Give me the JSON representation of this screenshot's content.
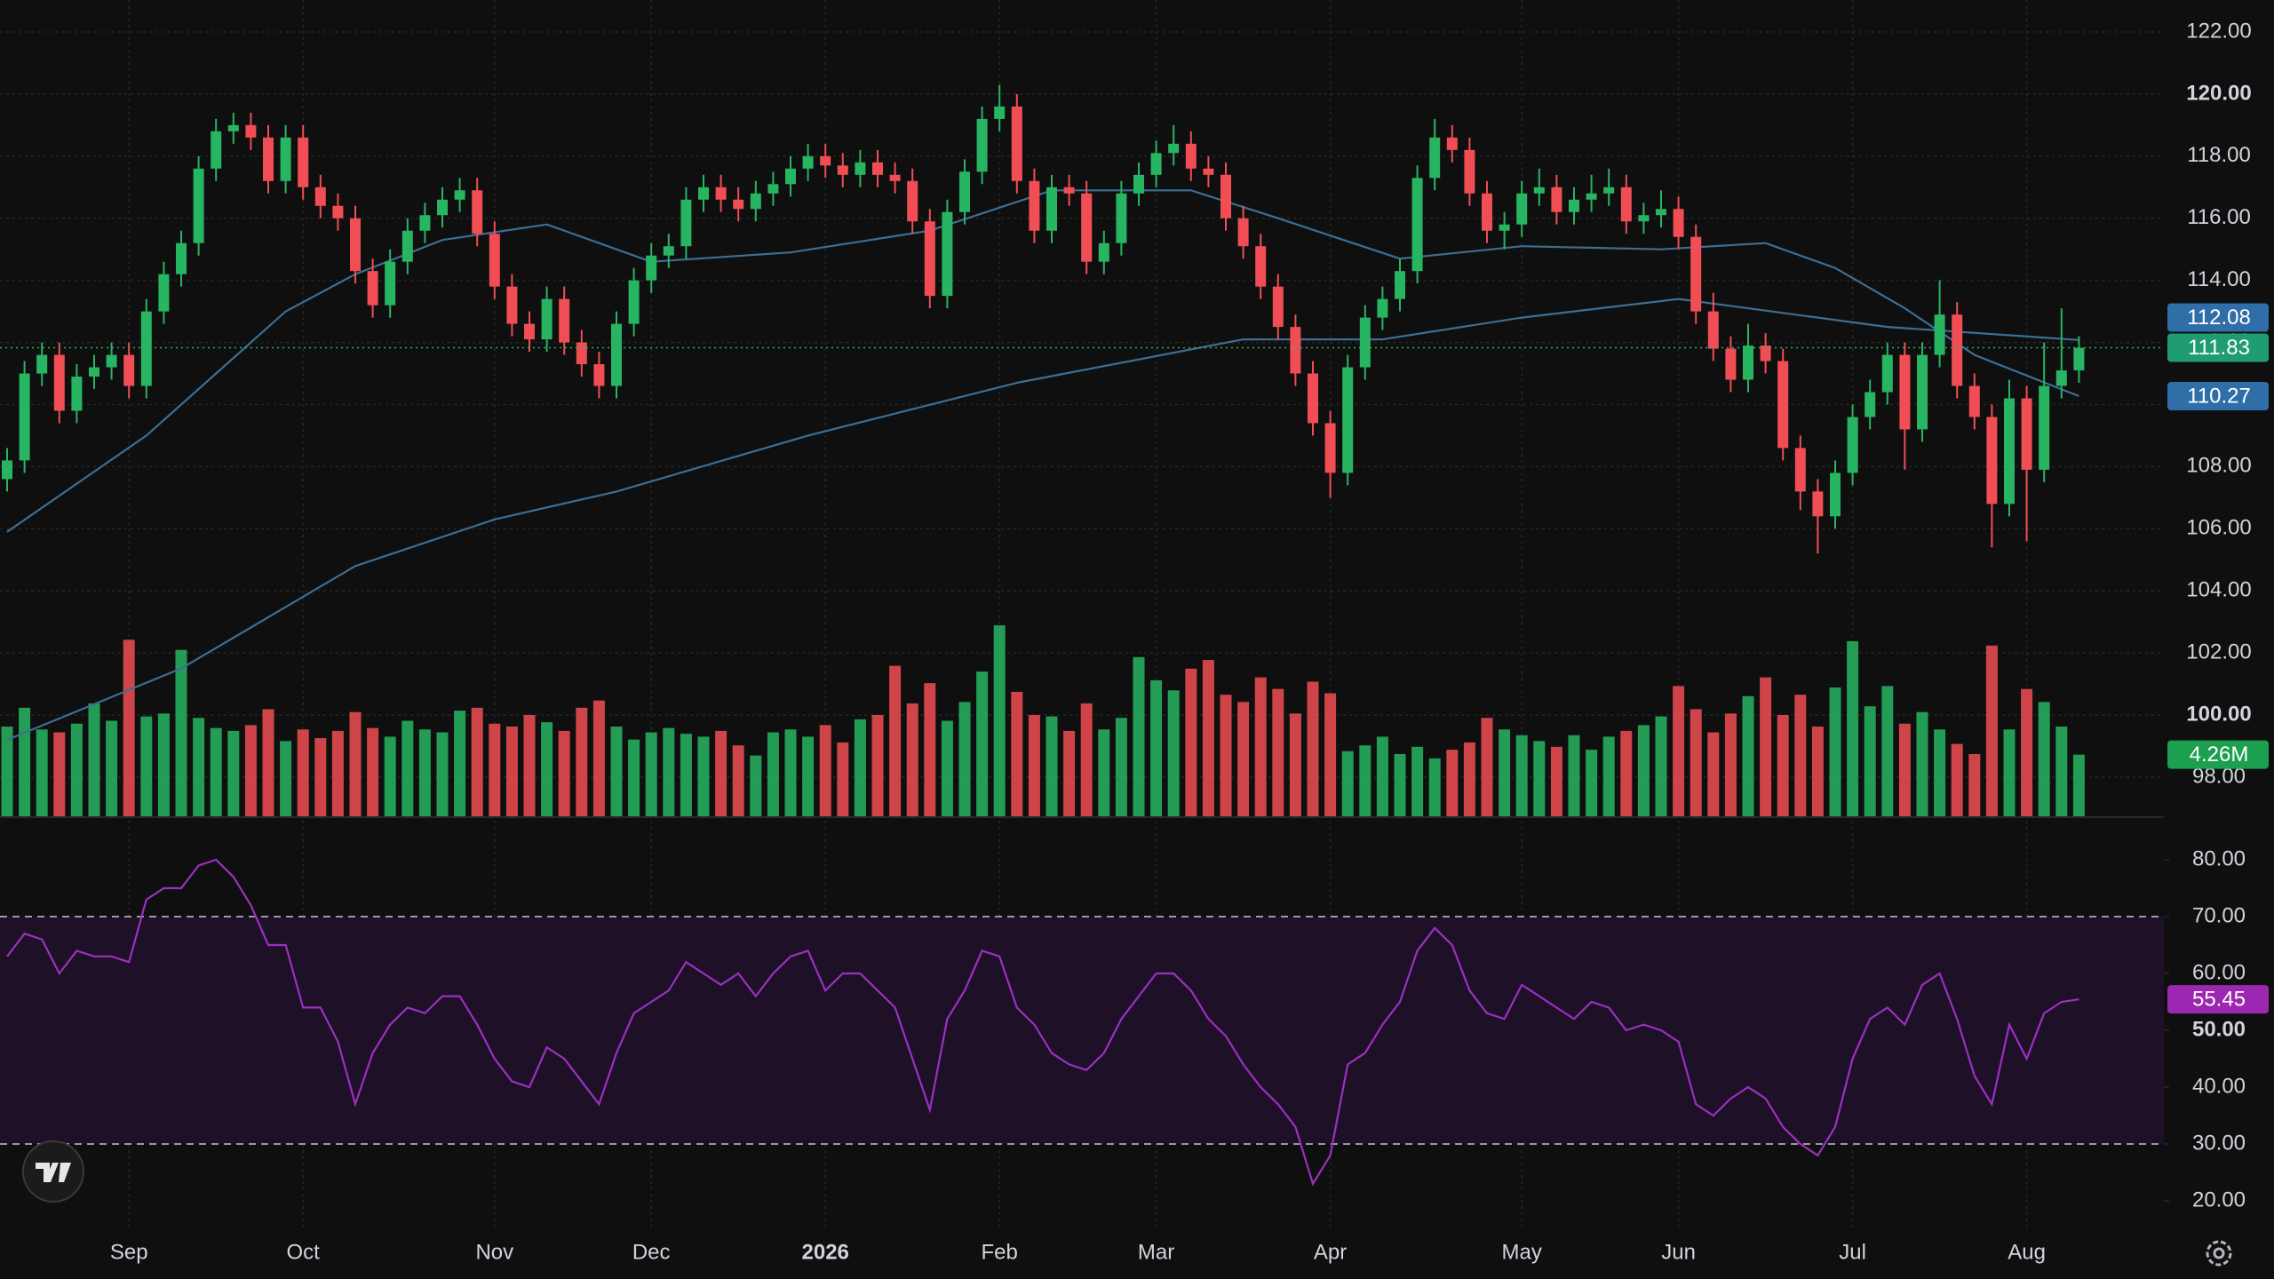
{
  "chart_data": {
    "type": "candlestick",
    "up_color": "#27b562",
    "down_color": "#f04e54",
    "grid": true,
    "ylim": [
      96.74,
      123.03
    ],
    "yticks": [
      {
        "value": 98,
        "label": "98.00"
      },
      {
        "value": 100,
        "label": "100.00",
        "bold": true
      },
      {
        "value": 102,
        "label": "102.00"
      },
      {
        "value": 104,
        "label": "104.00"
      },
      {
        "value": 106,
        "label": "106.00"
      },
      {
        "value": 108,
        "label": "108.00"
      },
      {
        "value": 110,
        "label": "110.00"
      },
      {
        "value": 112,
        "label": "112.00"
      },
      {
        "value": 114,
        "label": "114.00"
      },
      {
        "value": 116,
        "label": "116.00"
      },
      {
        "value": 118,
        "label": "118.00"
      },
      {
        "value": 120,
        "label": "120.00",
        "bold": true
      },
      {
        "value": 122,
        "label": "122.00"
      }
    ],
    "xticks": [
      {
        "value": 7,
        "label": "Sep"
      },
      {
        "value": 17,
        "label": "Oct"
      },
      {
        "value": 28,
        "label": "Nov"
      },
      {
        "value": 37,
        "label": "Dec"
      },
      {
        "value": 47,
        "label": "2026",
        "bold": true
      },
      {
        "value": 57,
        "label": "Feb"
      },
      {
        "value": 66,
        "label": "Mar"
      },
      {
        "value": 76,
        "label": "Apr"
      },
      {
        "value": 87,
        "label": "May"
      },
      {
        "value": 96,
        "label": "Jun"
      },
      {
        "value": 106,
        "label": "Jul"
      },
      {
        "value": 116,
        "label": "Aug"
      }
    ],
    "candles": [
      [
        107.6,
        108.6,
        107.2,
        108.2
      ],
      [
        108.2,
        111.4,
        107.8,
        111.0
      ],
      [
        111.0,
        112.0,
        110.6,
        111.6
      ],
      [
        111.6,
        112.0,
        109.4,
        109.8
      ],
      [
        109.8,
        111.3,
        109.4,
        110.9
      ],
      [
        110.9,
        111.6,
        110.5,
        111.2
      ],
      [
        111.2,
        112.0,
        110.8,
        111.6
      ],
      [
        111.6,
        112.0,
        110.2,
        110.6
      ],
      [
        110.6,
        113.4,
        110.2,
        113.0
      ],
      [
        113.0,
        114.6,
        112.6,
        114.2
      ],
      [
        114.2,
        115.6,
        113.8,
        115.2
      ],
      [
        115.2,
        118.0,
        114.8,
        117.6
      ],
      [
        117.6,
        119.2,
        117.2,
        118.8
      ],
      [
        118.8,
        119.4,
        118.4,
        119.0
      ],
      [
        119.0,
        119.4,
        118.2,
        118.6
      ],
      [
        118.6,
        119.0,
        116.8,
        117.2
      ],
      [
        117.2,
        119.0,
        116.8,
        118.6
      ],
      [
        118.6,
        119.0,
        116.6,
        117.0
      ],
      [
        117.0,
        117.4,
        116.0,
        116.4
      ],
      [
        116.4,
        116.8,
        115.6,
        116.0
      ],
      [
        116.0,
        116.4,
        113.9,
        114.3
      ],
      [
        114.3,
        114.7,
        112.8,
        113.2
      ],
      [
        113.2,
        115.0,
        112.8,
        114.6
      ],
      [
        114.6,
        116.0,
        114.2,
        115.6
      ],
      [
        115.6,
        116.5,
        115.2,
        116.1
      ],
      [
        116.1,
        117.0,
        115.7,
        116.6
      ],
      [
        116.6,
        117.3,
        116.2,
        116.9
      ],
      [
        116.9,
        117.3,
        115.1,
        115.5
      ],
      [
        115.5,
        115.9,
        113.4,
        113.8
      ],
      [
        113.8,
        114.2,
        112.2,
        112.6
      ],
      [
        112.6,
        113.0,
        111.7,
        112.1
      ],
      [
        112.1,
        113.8,
        111.7,
        113.4
      ],
      [
        113.4,
        113.8,
        111.6,
        112.0
      ],
      [
        112.0,
        112.4,
        110.9,
        111.3
      ],
      [
        111.3,
        111.7,
        110.2,
        110.6
      ],
      [
        110.6,
        113.0,
        110.2,
        112.6
      ],
      [
        112.6,
        114.4,
        112.2,
        114.0
      ],
      [
        114.0,
        115.2,
        113.6,
        114.8
      ],
      [
        114.8,
        115.5,
        114.4,
        115.1
      ],
      [
        115.1,
        117.0,
        114.7,
        116.6
      ],
      [
        116.6,
        117.4,
        116.2,
        117.0
      ],
      [
        117.0,
        117.4,
        116.2,
        116.6
      ],
      [
        116.6,
        117.0,
        115.9,
        116.3
      ],
      [
        116.3,
        117.2,
        115.9,
        116.8
      ],
      [
        116.8,
        117.5,
        116.4,
        117.1
      ],
      [
        117.1,
        118.0,
        116.7,
        117.6
      ],
      [
        117.6,
        118.4,
        117.2,
        118.0
      ],
      [
        118.0,
        118.4,
        117.3,
        117.7
      ],
      [
        117.7,
        118.1,
        117.0,
        117.4
      ],
      [
        117.4,
        118.2,
        117.0,
        117.8
      ],
      [
        117.8,
        118.2,
        117.0,
        117.4
      ],
      [
        117.4,
        117.8,
        116.8,
        117.2
      ],
      [
        117.2,
        117.6,
        115.5,
        115.9
      ],
      [
        115.9,
        116.3,
        113.1,
        113.5
      ],
      [
        113.5,
        116.6,
        113.1,
        116.2
      ],
      [
        116.2,
        117.9,
        115.8,
        117.5
      ],
      [
        117.5,
        119.6,
        117.1,
        119.2
      ],
      [
        119.2,
        120.3,
        118.8,
        119.6
      ],
      [
        119.6,
        120.0,
        116.8,
        117.2
      ],
      [
        117.2,
        117.6,
        115.2,
        115.6
      ],
      [
        115.6,
        117.4,
        115.2,
        117.0
      ],
      [
        117.0,
        117.4,
        116.4,
        116.8
      ],
      [
        116.8,
        117.2,
        114.2,
        114.6
      ],
      [
        114.6,
        115.6,
        114.2,
        115.2
      ],
      [
        115.2,
        117.2,
        114.8,
        116.8
      ],
      [
        116.8,
        117.8,
        116.4,
        117.4
      ],
      [
        117.4,
        118.5,
        117.0,
        118.1
      ],
      [
        118.1,
        119.0,
        117.7,
        118.4
      ],
      [
        118.4,
        118.8,
        117.2,
        117.6
      ],
      [
        117.6,
        118.0,
        117.0,
        117.4
      ],
      [
        117.4,
        117.8,
        115.6,
        116.0
      ],
      [
        116.0,
        116.4,
        114.7,
        115.1
      ],
      [
        115.1,
        115.5,
        113.4,
        113.8
      ],
      [
        113.8,
        114.2,
        112.1,
        112.5
      ],
      [
        112.5,
        112.9,
        110.6,
        111.0
      ],
      [
        111.0,
        111.4,
        109.0,
        109.4
      ],
      [
        109.4,
        109.8,
        107.0,
        107.8
      ],
      [
        107.8,
        111.6,
        107.4,
        111.2
      ],
      [
        111.2,
        113.2,
        110.8,
        112.8
      ],
      [
        112.8,
        113.8,
        112.4,
        113.4
      ],
      [
        113.4,
        114.7,
        113.0,
        114.3
      ],
      [
        114.3,
        117.7,
        113.9,
        117.3
      ],
      [
        117.3,
        119.2,
        116.9,
        118.6
      ],
      [
        118.6,
        119.0,
        117.8,
        118.2
      ],
      [
        118.2,
        118.6,
        116.4,
        116.8
      ],
      [
        116.8,
        117.2,
        115.2,
        115.6
      ],
      [
        115.6,
        116.2,
        115.0,
        115.8
      ],
      [
        115.8,
        117.2,
        115.4,
        116.8
      ],
      [
        116.8,
        117.6,
        116.4,
        117.0
      ],
      [
        117.0,
        117.4,
        115.8,
        116.2
      ],
      [
        116.2,
        117.0,
        115.8,
        116.6
      ],
      [
        116.6,
        117.4,
        116.2,
        116.8
      ],
      [
        116.8,
        117.6,
        116.4,
        117.0
      ],
      [
        117.0,
        117.4,
        115.5,
        115.9
      ],
      [
        115.9,
        116.5,
        115.5,
        116.1
      ],
      [
        116.1,
        116.9,
        115.7,
        116.3
      ],
      [
        116.3,
        116.7,
        115.0,
        115.4
      ],
      [
        115.4,
        115.8,
        112.6,
        113.0
      ],
      [
        113.0,
        113.6,
        111.4,
        111.8
      ],
      [
        111.8,
        112.2,
        110.4,
        110.8
      ],
      [
        110.8,
        112.6,
        110.4,
        111.9
      ],
      [
        111.9,
        112.3,
        111.0,
        111.4
      ],
      [
        111.4,
        111.8,
        108.2,
        108.6
      ],
      [
        108.6,
        109.0,
        106.6,
        107.2
      ],
      [
        107.2,
        107.6,
        105.2,
        106.4
      ],
      [
        106.4,
        108.2,
        106.0,
        107.8
      ],
      [
        107.8,
        110.0,
        107.4,
        109.6
      ],
      [
        109.6,
        110.8,
        109.2,
        110.4
      ],
      [
        110.4,
        112.0,
        110.0,
        111.6
      ],
      [
        111.6,
        112.0,
        107.9,
        109.2
      ],
      [
        109.2,
        112.0,
        108.8,
        111.6
      ],
      [
        111.6,
        114.0,
        111.2,
        112.9
      ],
      [
        112.9,
        113.3,
        110.2,
        110.6
      ],
      [
        110.6,
        111.0,
        109.2,
        109.6
      ],
      [
        109.6,
        110.0,
        105.4,
        106.8
      ],
      [
        106.8,
        110.8,
        106.4,
        110.2
      ],
      [
        110.2,
        110.6,
        105.6,
        107.9
      ],
      [
        107.9,
        112.0,
        107.5,
        110.6
      ],
      [
        110.6,
        113.1,
        110.2,
        111.1
      ],
      [
        111.1,
        112.2,
        110.7,
        111.83
      ]
    ],
    "ma": [
      {
        "color": "#3d6e94",
        "x": [
          0,
          10,
          20,
          28,
          35,
          46,
          58,
          71,
          79,
          87,
          96,
          108,
          119
        ],
        "values": [
          99.2,
          101.5,
          104.8,
          106.3,
          107.2,
          109.0,
          110.7,
          112.1,
          112.1,
          112.8,
          113.4,
          112.5,
          112.08
        ]
      },
      {
        "color": "#3d6e94",
        "x": [
          0,
          8,
          16,
          20,
          25,
          31,
          37,
          45,
          53,
          60,
          68,
          73,
          80,
          87,
          95,
          101,
          105,
          109,
          113,
          119
        ],
        "values": [
          105.9,
          109.0,
          113.0,
          114.2,
          115.3,
          115.8,
          114.6,
          114.9,
          115.6,
          116.9,
          116.9,
          116.0,
          114.7,
          115.1,
          115.0,
          115.2,
          114.4,
          113.1,
          111.6,
          110.27
        ]
      }
    ],
    "volume": {
      "values": [
        6.2,
        7.5,
        6.0,
        5.8,
        6.4,
        7.8,
        6.6,
        12.2,
        6.9,
        7.1,
        11.5,
        6.8,
        6.1,
        5.9,
        6.3,
        7.4,
        5.2,
        6.0,
        5.4,
        5.9,
        7.2,
        6.1,
        5.5,
        6.6,
        6.0,
        5.8,
        7.3,
        7.5,
        6.4,
        6.2,
        7.0,
        6.5,
        5.9,
        7.5,
        8.0,
        6.2,
        5.3,
        5.8,
        6.1,
        5.7,
        5.5,
        5.9,
        4.9,
        4.2,
        5.8,
        6.0,
        5.5,
        6.3,
        5.1,
        6.7,
        7.0,
        10.4,
        7.8,
        9.2,
        6.6,
        7.9,
        10.0,
        13.2,
        8.6,
        7.0,
        6.9,
        5.9,
        7.8,
        6.0,
        6.8,
        11.0,
        9.4,
        8.7,
        10.2,
        10.8,
        8.4,
        7.9,
        9.6,
        8.8,
        7.1,
        9.3,
        8.5,
        4.5,
        4.9,
        5.5,
        4.3,
        4.8,
        4.0,
        4.6,
        5.1,
        6.8,
        6.0,
        5.6,
        5.2,
        4.8,
        5.6,
        4.6,
        5.5,
        5.9,
        6.3,
        6.9,
        9.0,
        7.4,
        5.8,
        7.1,
        8.3,
        9.6,
        7.0,
        8.4,
        6.2,
        8.9,
        12.1,
        7.6,
        9.0,
        6.4,
        7.2,
        6.0,
        5.0,
        4.3,
        11.8,
        6.0,
        8.8,
        7.9,
        6.2,
        4.26
      ],
      "last_label": "4.26M"
    },
    "rsi": {
      "color": "#9b30c0",
      "band": [
        30,
        70
      ],
      "band_color": "#1e1027",
      "ylim": [
        14.84,
        87.5
      ],
      "yticks": [
        {
          "value": 20,
          "label": "20.00"
        },
        {
          "value": 30,
          "label": "30.00"
        },
        {
          "value": 40,
          "label": "40.00"
        },
        {
          "value": 50,
          "label": "50.00",
          "bold": true
        },
        {
          "value": 60,
          "label": "60.00"
        },
        {
          "value": 70,
          "label": "70.00"
        },
        {
          "value": 80,
          "label": "80.00"
        }
      ],
      "values": [
        63,
        67,
        66,
        60,
        64,
        63,
        63,
        62,
        73,
        75,
        75,
        79,
        80,
        77,
        72,
        65,
        65,
        54,
        54,
        48,
        37,
        46,
        51,
        54,
        53,
        56,
        56,
        51,
        45,
        41,
        40,
        47,
        45,
        41,
        37,
        46,
        53,
        55,
        57,
        62,
        60,
        58,
        60,
        56,
        60,
        63,
        64,
        57,
        60,
        60,
        57,
        54,
        45,
        36,
        52,
        57,
        64,
        63,
        54,
        51,
        46,
        44,
        43,
        46,
        52,
        56,
        60,
        60,
        57,
        52,
        49,
        44,
        40,
        37,
        33,
        23,
        28,
        44,
        46,
        51,
        55,
        64,
        68,
        65,
        57,
        53,
        52,
        58,
        56,
        54,
        52,
        55,
        54,
        50,
        51,
        50,
        48,
        37,
        35,
        38,
        40,
        38,
        33,
        30,
        28,
        33,
        45,
        52,
        54,
        51,
        58,
        60,
        52,
        42,
        37,
        51,
        45,
        53,
        55,
        55.45
      ]
    }
  }
}
